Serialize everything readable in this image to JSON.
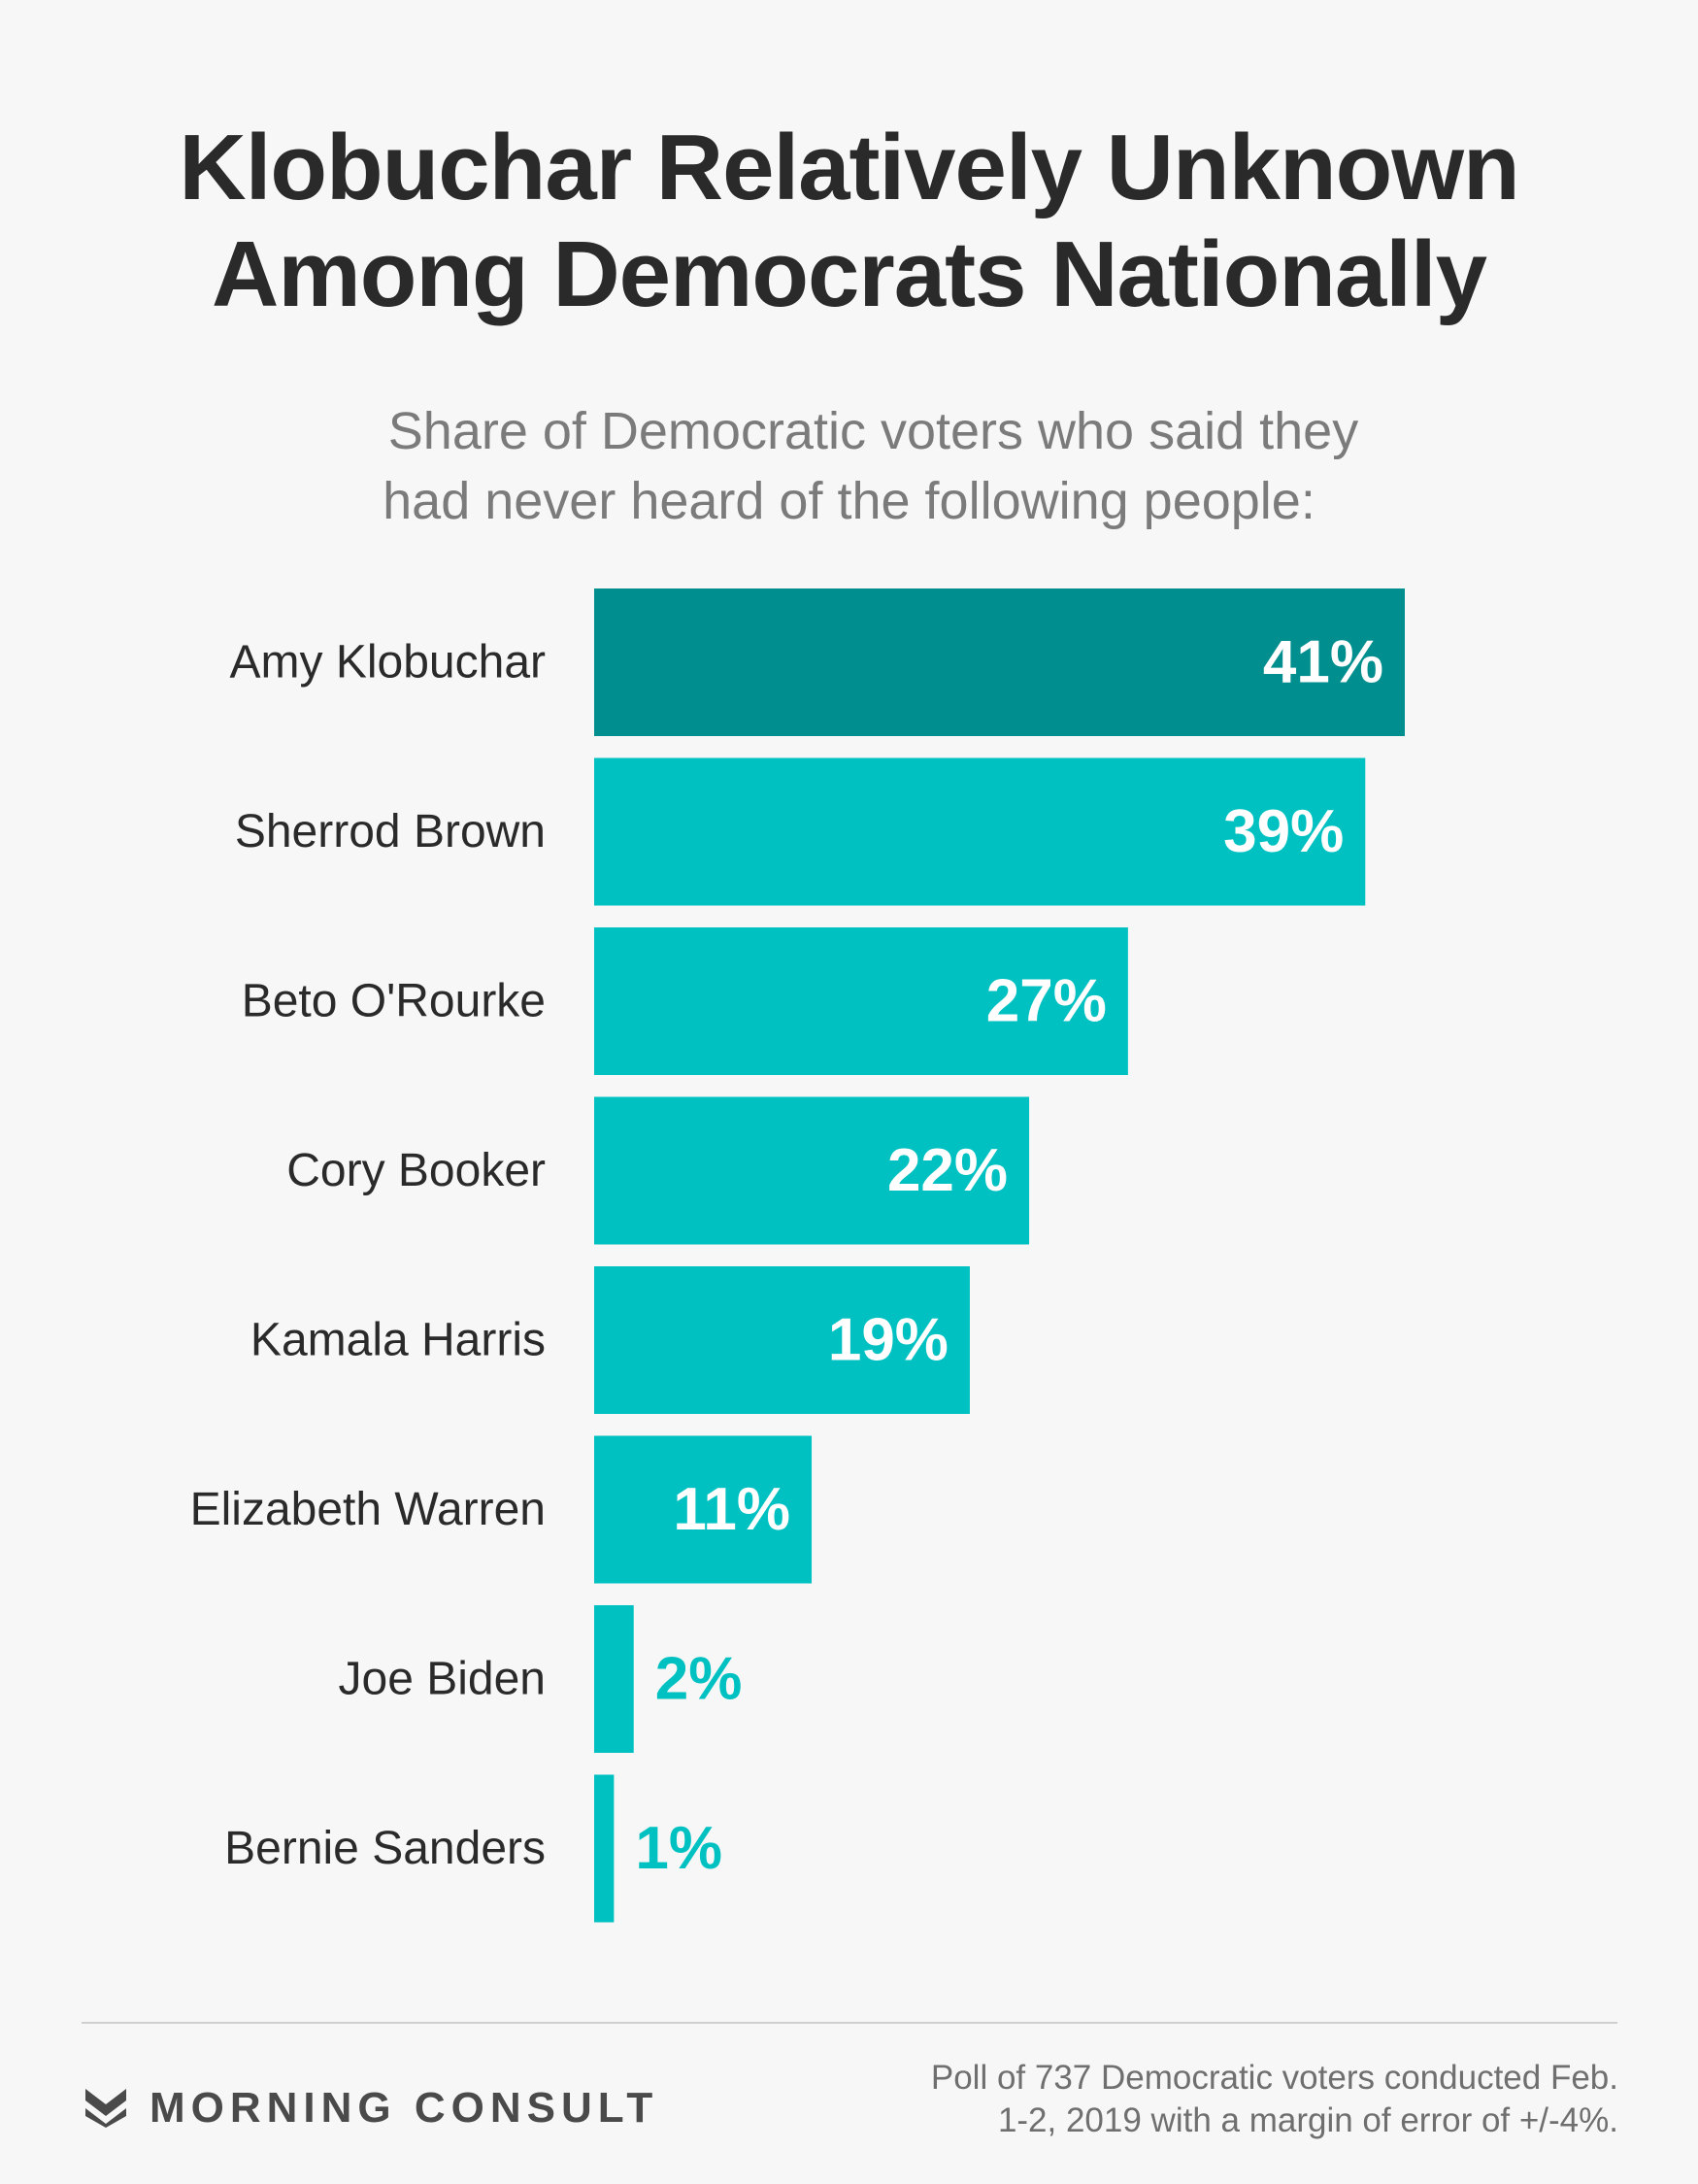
{
  "header": {
    "title_line1": "Klobuchar Relatively Unknown",
    "title_line2": "Among Democrats Nationally",
    "subtitle_line1": "Share of Democratic voters who said they",
    "subtitle_line2": "had never heard of the following people:"
  },
  "chart_data": {
    "type": "bar",
    "orientation": "horizontal",
    "categories": [
      "Amy Klobuchar",
      "Sherrod Brown",
      "Beto O'Rourke",
      "Cory Booker",
      "Kamala Harris",
      "Elizabeth Warren",
      "Joe Biden",
      "Bernie Sanders"
    ],
    "values": [
      41,
      39,
      27,
      22,
      19,
      11,
      2,
      1
    ],
    "value_labels": [
      "41%",
      "39%",
      "27%",
      "22%",
      "19%",
      "11%",
      "2%",
      "1%"
    ],
    "highlight_index": 0,
    "colors": {
      "highlight": "#008e8e",
      "bar": "#00c1c1",
      "label_inside": "#ffffff",
      "label_outside": "#00c1c1",
      "category_text": "#2a2a2a"
    },
    "xlim": [
      0,
      41
    ],
    "grid": false,
    "legend": "none"
  },
  "footer": {
    "brand": "MORNING CONSULT",
    "brand_icon": "morning-consult-m-icon",
    "note_line1": "Poll of 737 Democratic voters conducted Feb.",
    "note_line2": "1-2, 2019 with a margin of error of +/-4%."
  }
}
